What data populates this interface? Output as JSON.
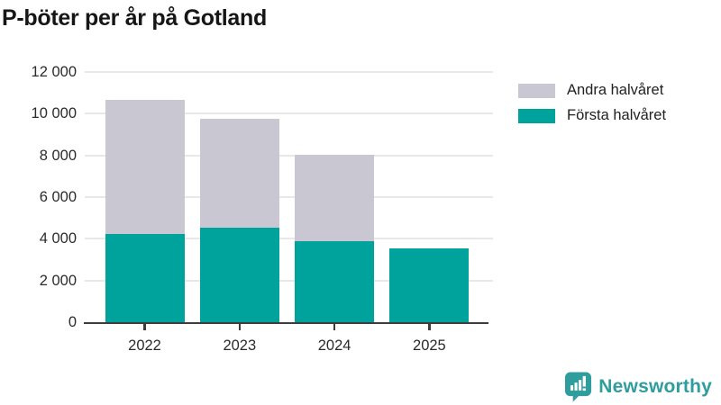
{
  "title": "P-böter per år på Gotland",
  "legend": [
    {
      "label": "Andra halvåret",
      "color": "#c9c8d2"
    },
    {
      "label": "Första halvåret",
      "color": "#00a39c"
    }
  ],
  "logo": {
    "text": "Newsworthy",
    "color": "#2f9d9d"
  },
  "colors": {
    "first_half": "#00a39c",
    "second_half": "#c9c8d2",
    "axis": "#3d3d3d",
    "gridline": "#e8e8e8",
    "tick_text": "#2b2b2b",
    "title_text": "#161616"
  },
  "chart_data": {
    "type": "bar",
    "stacked": true,
    "title": "P-böter per år på Gotland",
    "categories": [
      "2022",
      "2023",
      "2024",
      "2025"
    ],
    "series": [
      {
        "name": "Första halvåret",
        "color": "#00a39c",
        "values": [
          4250,
          4550,
          3900,
          3550
        ]
      },
      {
        "name": "Andra halvåret",
        "color": "#c9c8d2",
        "values": [
          6400,
          5200,
          4150,
          0
        ]
      }
    ],
    "totals": [
      10650,
      9750,
      8050,
      3550
    ],
    "xlabel": "",
    "ylabel": "",
    "ylim": [
      0,
      12000
    ],
    "yticks": [
      0,
      2000,
      4000,
      6000,
      8000,
      10000,
      12000
    ],
    "ytick_labels": [
      "0",
      "2 000",
      "4 000",
      "6 000",
      "8 000",
      "10 000",
      "12 000"
    ],
    "grid": true,
    "legend_position": "top-right"
  }
}
